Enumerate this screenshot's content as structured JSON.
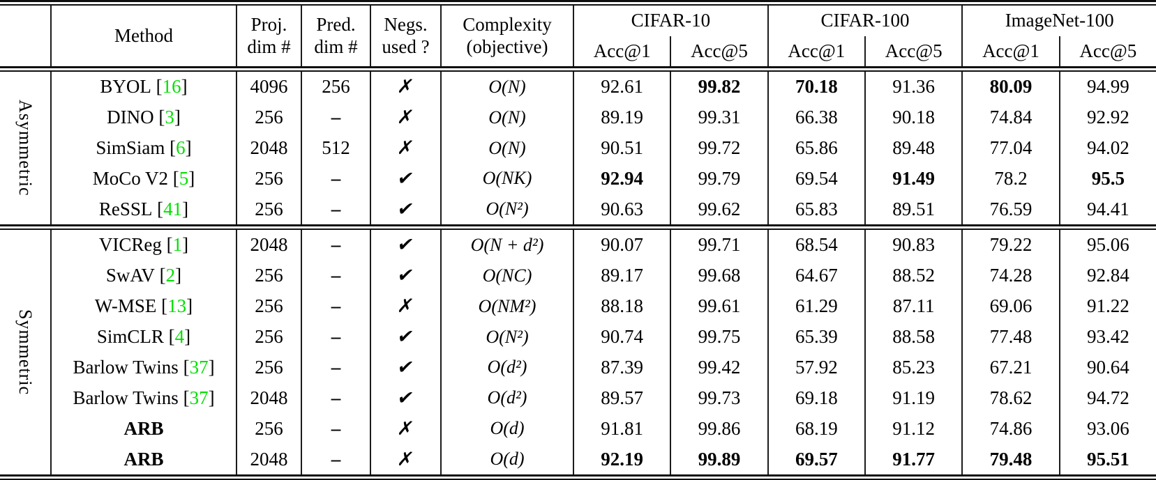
{
  "colors": {
    "citation_green": "#00e000",
    "rule_black": "#1b1b1b",
    "background": "#ffffff"
  },
  "icons": {
    "yes": "✔",
    "no": "✗"
  },
  "header": {
    "method": "Method",
    "proj": [
      "Proj.",
      "dim #"
    ],
    "pred": [
      "Pred.",
      "dim #"
    ],
    "negs": [
      "Negs.",
      "used ?"
    ],
    "complexity": [
      "Complexity",
      "(objective)"
    ],
    "groups": [
      {
        "label": "CIFAR-10",
        "sub": [
          "Acc@1",
          "Acc@5"
        ]
      },
      {
        "label": "CIFAR-100",
        "sub": [
          "Acc@1",
          "Acc@5"
        ]
      },
      {
        "label": "ImageNet-100",
        "sub": [
          "Acc@1",
          "Acc@5"
        ]
      }
    ]
  },
  "groups": [
    {
      "label": "Asymmetric",
      "rows": [
        {
          "method": "BYOL",
          "cite": "16",
          "method_bold": false,
          "proj": "4096",
          "pred": "256",
          "negs": "no",
          "complexity": "O(N)",
          "scores": [
            {
              "value": "92.61",
              "bold": false
            },
            {
              "value": "99.82",
              "bold": true
            },
            {
              "value": "70.18",
              "bold": true
            },
            {
              "value": "91.36",
              "bold": false
            },
            {
              "value": "80.09",
              "bold": true
            },
            {
              "value": "94.99",
              "bold": false
            }
          ]
        },
        {
          "method": "DINO",
          "cite": "3",
          "method_bold": false,
          "proj": "256",
          "pred": "–",
          "negs": "no",
          "complexity": "O(N)",
          "scores": [
            {
              "value": "89.19",
              "bold": false
            },
            {
              "value": "99.31",
              "bold": false
            },
            {
              "value": "66.38",
              "bold": false
            },
            {
              "value": "90.18",
              "bold": false
            },
            {
              "value": "74.84",
              "bold": false
            },
            {
              "value": "92.92",
              "bold": false
            }
          ]
        },
        {
          "method": "SimSiam",
          "cite": "6",
          "method_bold": false,
          "proj": "2048",
          "pred": "512",
          "negs": "no",
          "complexity": "O(N)",
          "scores": [
            {
              "value": "90.51",
              "bold": false
            },
            {
              "value": "99.72",
              "bold": false
            },
            {
              "value": "65.86",
              "bold": false
            },
            {
              "value": "89.48",
              "bold": false
            },
            {
              "value": "77.04",
              "bold": false
            },
            {
              "value": "94.02",
              "bold": false
            }
          ]
        },
        {
          "method": "MoCo V2",
          "cite": "5",
          "method_bold": false,
          "proj": "256",
          "pred": "–",
          "negs": "yes",
          "complexity": "O(NK)",
          "scores": [
            {
              "value": "92.94",
              "bold": true
            },
            {
              "value": "99.79",
              "bold": false
            },
            {
              "value": "69.54",
              "bold": false
            },
            {
              "value": "91.49",
              "bold": true
            },
            {
              "value": "78.2",
              "bold": false
            },
            {
              "value": "95.5",
              "bold": true
            }
          ]
        },
        {
          "method": "ReSSL",
          "cite": "41",
          "method_bold": false,
          "proj": "256",
          "pred": "–",
          "negs": "yes",
          "complexity": "O(N²)",
          "scores": [
            {
              "value": "90.63",
              "bold": false
            },
            {
              "value": "99.62",
              "bold": false
            },
            {
              "value": "65.83",
              "bold": false
            },
            {
              "value": "89.51",
              "bold": false
            },
            {
              "value": "76.59",
              "bold": false
            },
            {
              "value": "94.41",
              "bold": false
            }
          ]
        }
      ]
    },
    {
      "label": "Symmetric",
      "rows": [
        {
          "method": "VICReg",
          "cite": "1",
          "method_bold": false,
          "proj": "2048",
          "pred": "–",
          "negs": "yes",
          "complexity": "O(N + d²)",
          "scores": [
            {
              "value": "90.07",
              "bold": false
            },
            {
              "value": "99.71",
              "bold": false
            },
            {
              "value": "68.54",
              "bold": false
            },
            {
              "value": "90.83",
              "bold": false
            },
            {
              "value": "79.22",
              "bold": false
            },
            {
              "value": "95.06",
              "bold": false
            }
          ]
        },
        {
          "method": "SwAV",
          "cite": "2",
          "method_bold": false,
          "proj": "256",
          "pred": "–",
          "negs": "yes",
          "complexity": "O(NC)",
          "scores": [
            {
              "value": "89.17",
              "bold": false
            },
            {
              "value": "99.68",
              "bold": false
            },
            {
              "value": "64.67",
              "bold": false
            },
            {
              "value": "88.52",
              "bold": false
            },
            {
              "value": "74.28",
              "bold": false
            },
            {
              "value": "92.84",
              "bold": false
            }
          ]
        },
        {
          "method": "W-MSE",
          "cite": "13",
          "method_bold": false,
          "proj": "256",
          "pred": "–",
          "negs": "no",
          "complexity": "O(NM²)",
          "scores": [
            {
              "value": "88.18",
              "bold": false
            },
            {
              "value": "99.61",
              "bold": false
            },
            {
              "value": "61.29",
              "bold": false
            },
            {
              "value": "87.11",
              "bold": false
            },
            {
              "value": "69.06",
              "bold": false
            },
            {
              "value": "91.22",
              "bold": false
            }
          ]
        },
        {
          "method": "SimCLR",
          "cite": "4",
          "method_bold": false,
          "proj": "256",
          "pred": "–",
          "negs": "yes",
          "complexity": "O(N²)",
          "scores": [
            {
              "value": "90.74",
              "bold": false
            },
            {
              "value": "99.75",
              "bold": false
            },
            {
              "value": "65.39",
              "bold": false
            },
            {
              "value": "88.58",
              "bold": false
            },
            {
              "value": "77.48",
              "bold": false
            },
            {
              "value": "93.42",
              "bold": false
            }
          ]
        },
        {
          "method": "Barlow Twins",
          "cite": "37",
          "method_bold": false,
          "proj": "256",
          "pred": "–",
          "negs": "yes",
          "complexity": "O(d²)",
          "scores": [
            {
              "value": "87.39",
              "bold": false
            },
            {
              "value": "99.42",
              "bold": false
            },
            {
              "value": "57.92",
              "bold": false
            },
            {
              "value": "85.23",
              "bold": false
            },
            {
              "value": "67.21",
              "bold": false
            },
            {
              "value": "90.64",
              "bold": false
            }
          ]
        },
        {
          "method": "Barlow Twins",
          "cite": "37",
          "method_bold": false,
          "proj": "2048",
          "pred": "–",
          "negs": "yes",
          "complexity": "O(d²)",
          "scores": [
            {
              "value": "89.57",
              "bold": false
            },
            {
              "value": "99.73",
              "bold": false
            },
            {
              "value": "69.18",
              "bold": false
            },
            {
              "value": "91.19",
              "bold": false
            },
            {
              "value": "78.62",
              "bold": false
            },
            {
              "value": "94.72",
              "bold": false
            }
          ]
        },
        {
          "method": "ARB",
          "cite": null,
          "method_bold": true,
          "proj": "256",
          "pred": "–",
          "negs": "no",
          "complexity": "O(d)",
          "scores": [
            {
              "value": "91.81",
              "bold": false
            },
            {
              "value": "99.86",
              "bold": false
            },
            {
              "value": "68.19",
              "bold": false
            },
            {
              "value": "91.12",
              "bold": false
            },
            {
              "value": "74.86",
              "bold": false
            },
            {
              "value": "93.06",
              "bold": false
            }
          ]
        },
        {
          "method": "ARB",
          "cite": null,
          "method_bold": true,
          "proj": "2048",
          "pred": "–",
          "negs": "no",
          "complexity": "O(d)",
          "scores": [
            {
              "value": "92.19",
              "bold": true
            },
            {
              "value": "99.89",
              "bold": true
            },
            {
              "value": "69.57",
              "bold": true
            },
            {
              "value": "91.77",
              "bold": true
            },
            {
              "value": "79.48",
              "bold": true
            },
            {
              "value": "95.51",
              "bold": true
            }
          ]
        }
      ]
    }
  ]
}
